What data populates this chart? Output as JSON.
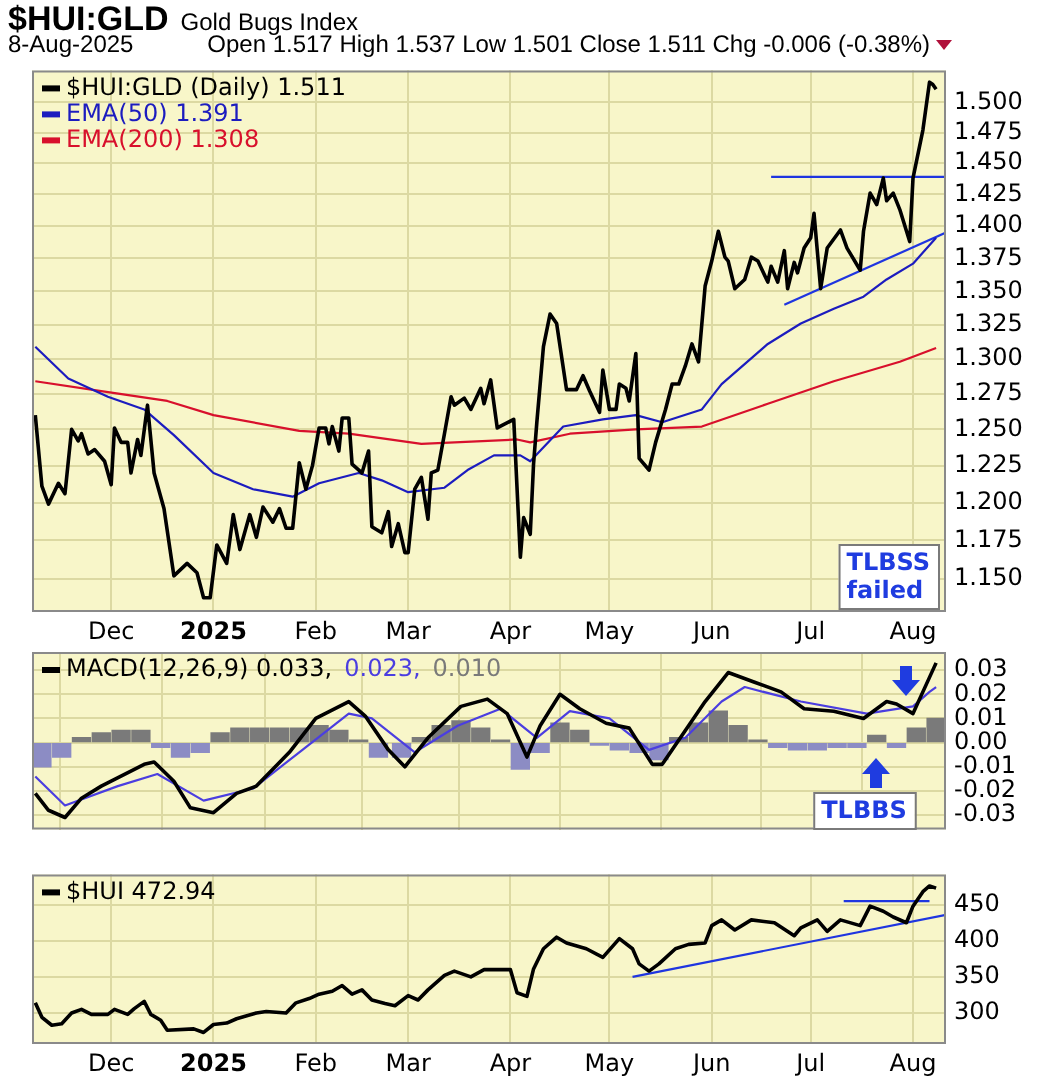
{
  "chart_data": [
    {
      "type": "line",
      "title": "$HUI:GLD",
      "subtitle": "Gold Bugs Index",
      "annotations": [
        "8-Aug-2025",
        "Open 1.517 High 1.537 Low 1.501 Close 1.511 Chg -0.006 (-0.38%)"
      ],
      "xlim": [
        "2024-11-07",
        "2025-08-11"
      ],
      "xticks": [
        {
          "value": "2024-12-01",
          "label": "Dec"
        },
        {
          "value": "2025-01-01",
          "label": "2025"
        },
        {
          "value": "2025-02-01",
          "label": "Feb"
        },
        {
          "value": "2025-03-01",
          "label": "Mar"
        },
        {
          "value": "2025-04-01",
          "label": "Apr"
        },
        {
          "value": "2025-05-01",
          "label": "May"
        },
        {
          "value": "2025-06-01",
          "label": "Jun"
        },
        {
          "value": "2025-07-01",
          "label": "Jul"
        },
        {
          "value": "2025-08-01",
          "label": "Aug"
        }
      ],
      "ylim": [
        1.129,
        1.527
      ],
      "yticks": [
        {
          "value": 1.15,
          "label": "1.150"
        },
        {
          "value": 1.175,
          "label": "1.175"
        },
        {
          "value": 1.2,
          "label": "1.200"
        },
        {
          "value": 1.225,
          "label": "1.225"
        },
        {
          "value": 1.25,
          "label": "1.250"
        },
        {
          "value": 1.275,
          "label": "1.275"
        },
        {
          "value": 1.3,
          "label": "1.300"
        },
        {
          "value": 1.325,
          "label": "1.325"
        },
        {
          "value": 1.35,
          "label": "1.350"
        },
        {
          "value": 1.375,
          "label": "1.375"
        },
        {
          "value": 1.4,
          "label": "1.400"
        },
        {
          "value": 1.425,
          "label": "1.425"
        },
        {
          "value": 1.45,
          "label": "1.450"
        },
        {
          "value": 1.475,
          "label": "1.475"
        },
        {
          "value": 1.5,
          "label": "1.500"
        }
      ],
      "log": "y",
      "grid": true,
      "legend": "top left",
      "marker": "none",
      "series": [
        {
          "name": "$HUI:GLD (Daily) 1.511",
          "color": "#000000",
          "x": [
            "2024-11-08",
            "2024-11-10",
            "2024-11-12",
            "2024-11-15",
            "2024-11-17",
            "2024-11-19",
            "2024-11-21",
            "2024-11-22",
            "2024-11-24",
            "2024-11-26",
            "2024-11-29",
            "2024-12-01",
            "2024-12-02",
            "2024-12-04",
            "2024-12-06",
            "2024-12-07",
            "2024-12-09",
            "2024-12-10",
            "2024-12-12",
            "2024-12-14",
            "2024-12-17",
            "2024-12-20",
            "2024-12-24",
            "2024-12-27",
            "2024-12-29",
            "2024-12-31",
            "2025-01-02",
            "2025-01-05",
            "2025-01-07",
            "2025-01-09",
            "2025-01-12",
            "2025-01-14",
            "2025-01-16",
            "2025-01-19",
            "2025-01-21",
            "2025-01-23",
            "2025-01-25",
            "2025-01-27",
            "2025-01-29",
            "2025-01-31",
            "2025-02-02",
            "2025-02-04",
            "2025-02-05",
            "2025-02-06",
            "2025-02-08",
            "2025-02-09",
            "2025-02-11",
            "2025-02-12",
            "2025-02-15",
            "2025-02-17",
            "2025-02-18",
            "2025-02-21",
            "2025-02-23",
            "2025-02-24",
            "2025-02-26",
            "2025-02-28",
            "2025-03-01",
            "2025-03-03",
            "2025-03-05",
            "2025-03-07",
            "2025-03-08",
            "2025-03-10",
            "2025-03-12",
            "2025-03-14",
            "2025-03-15",
            "2025-03-18",
            "2025-03-20",
            "2025-03-23",
            "2025-03-24",
            "2025-03-26",
            "2025-03-28",
            "2025-04-02",
            "2025-04-04",
            "2025-04-05",
            "2025-04-07",
            "2025-04-08",
            "2025-04-09",
            "2025-04-11",
            "2025-04-13",
            "2025-04-15",
            "2025-04-18",
            "2025-04-21",
            "2025-04-23",
            "2025-04-25",
            "2025-04-28",
            "2025-04-29",
            "2025-05-01",
            "2025-05-03",
            "2025-05-04",
            "2025-05-06",
            "2025-05-07",
            "2025-05-09",
            "2025-05-10",
            "2025-05-13",
            "2025-05-15",
            "2025-05-18",
            "2025-05-20",
            "2025-05-22",
            "2025-05-24",
            "2025-05-26",
            "2025-05-28",
            "2025-05-30",
            "2025-06-01",
            "2025-06-03",
            "2025-06-05",
            "2025-06-06",
            "2025-06-08",
            "2025-06-11",
            "2025-06-13",
            "2025-06-15",
            "2025-06-18",
            "2025-06-19",
            "2025-06-21",
            "2025-06-23",
            "2025-06-24",
            "2025-06-26",
            "2025-06-27",
            "2025-06-29",
            "2025-07-01",
            "2025-07-02",
            "2025-07-04",
            "2025-07-06",
            "2025-07-10",
            "2025-07-12",
            "2025-07-16",
            "2025-07-17",
            "2025-07-19",
            "2025-07-21",
            "2025-07-23",
            "2025-07-24",
            "2025-07-26",
            "2025-07-28",
            "2025-07-31",
            "2025-08-01",
            "2025-08-04",
            "2025-08-05",
            "2025-08-06",
            "2025-08-07",
            "2025-08-08"
          ],
          "values": [
            1.26,
            1.211,
            1.199,
            1.213,
            1.206,
            1.25,
            1.242,
            1.247,
            1.233,
            1.236,
            1.228,
            1.212,
            1.251,
            1.241,
            1.241,
            1.22,
            1.243,
            1.232,
            1.267,
            1.22,
            1.196,
            1.152,
            1.16,
            1.154,
            1.138,
            1.138,
            1.172,
            1.16,
            1.192,
            1.169,
            1.192,
            1.177,
            1.197,
            1.187,
            1.196,
            1.183,
            1.183,
            1.227,
            1.209,
            1.225,
            1.251,
            1.251,
            1.24,
            1.252,
            1.235,
            1.258,
            1.258,
            1.226,
            1.22,
            1.235,
            1.184,
            1.18,
            1.194,
            1.171,
            1.186,
            1.167,
            1.167,
            1.209,
            1.217,
            1.189,
            1.22,
            1.222,
            1.247,
            1.273,
            1.267,
            1.272,
            1.264,
            1.279,
            1.268,
            1.285,
            1.251,
            1.257,
            1.164,
            1.19,
            1.179,
            1.226,
            1.255,
            1.309,
            1.333,
            1.326,
            1.278,
            1.278,
            1.288,
            1.277,
            1.262,
            1.292,
            1.264,
            1.264,
            1.282,
            1.279,
            1.27,
            1.304,
            1.23,
            1.222,
            1.241,
            1.264,
            1.282,
            1.282,
            1.295,
            1.311,
            1.298,
            1.354,
            1.373,
            1.396,
            1.376,
            1.373,
            1.352,
            1.359,
            1.376,
            1.373,
            1.357,
            1.369,
            1.357,
            1.381,
            1.352,
            1.372,
            1.364,
            1.383,
            1.391,
            1.41,
            1.352,
            1.383,
            1.397,
            1.383,
            1.366,
            1.396,
            1.426,
            1.417,
            1.438,
            1.42,
            1.426,
            1.413,
            1.388,
            1.438,
            1.477,
            1.497,
            1.517,
            1.515,
            1.511
          ]
        },
        {
          "name": "EMA(50) 1.391",
          "color": "#1c1cbf",
          "x": [
            "2024-11-08",
            "2024-11-18",
            "2024-11-30",
            "2024-12-11",
            "2024-12-20",
            "2025-01-01",
            "2025-01-13",
            "2025-01-25",
            "2025-02-02",
            "2025-02-14",
            "2025-02-21",
            "2025-03-01",
            "2025-03-12",
            "2025-03-19",
            "2025-03-27",
            "2025-04-04",
            "2025-04-07",
            "2025-04-17",
            "2025-04-29",
            "2025-05-09",
            "2025-05-17",
            "2025-05-29",
            "2025-06-04",
            "2025-06-18",
            "2025-06-28",
            "2025-07-08",
            "2025-07-17",
            "2025-07-24",
            "2025-08-01",
            "2025-08-08"
          ],
          "values": [
            1.309,
            1.286,
            1.273,
            1.264,
            1.246,
            1.22,
            1.209,
            1.204,
            1.213,
            1.22,
            1.215,
            1.207,
            1.21,
            1.222,
            1.232,
            1.232,
            1.228,
            1.252,
            1.257,
            1.26,
            1.255,
            1.264,
            1.282,
            1.311,
            1.326,
            1.337,
            1.346,
            1.359,
            1.371,
            1.391
          ]
        },
        {
          "name": "EMA(200) 1.308",
          "color": "#d8102c",
          "x": [
            "2024-11-08",
            "2024-11-28",
            "2024-12-18",
            "2025-01-01",
            "2025-01-27",
            "2025-02-11",
            "2025-03-05",
            "2025-04-03",
            "2025-04-07",
            "2025-04-19",
            "2025-05-09",
            "2025-05-29",
            "2025-06-18",
            "2025-07-08",
            "2025-07-28",
            "2025-08-08"
          ],
          "values": [
            1.284,
            1.277,
            1.27,
            1.26,
            1.249,
            1.247,
            1.24,
            1.243,
            1.241,
            1.247,
            1.25,
            1.252,
            1.268,
            1.284,
            1.298,
            1.308
          ]
        },
        {
          "color": "#1f35e0",
          "x": [
            "2025-06-19",
            "2025-08-11"
          ],
          "values": [
            1.439,
            1.439
          ]
        },
        {
          "color": "#1f35e0",
          "x": [
            "2025-06-23",
            "2025-08-11"
          ],
          "values": [
            1.34,
            1.395
          ]
        }
      ]
    },
    {
      "type": "line",
      "tick_labels": "y",
      "annotations": [
        "TLBSS failed",
        "TLBBS"
      ],
      "xlim": [
        "2024-11-07",
        "2025-08-11"
      ],
      "xticks": [
        {
          "value": "2024-12-01",
          "label": null
        },
        {
          "value": "2025-01-01",
          "label": null
        },
        {
          "value": "2025-02-01",
          "label": null
        },
        {
          "value": "2025-03-01",
          "label": null
        },
        {
          "value": "2025-04-01",
          "label": null
        },
        {
          "value": "2025-05-01",
          "label": null
        },
        {
          "value": "2025-06-01",
          "label": null
        },
        {
          "value": "2025-07-01",
          "label": null
        },
        {
          "value": "2025-08-01",
          "label": null
        }
      ],
      "ylim": [
        -0.036,
        0.0375
      ],
      "yticks": [
        -0.03,
        -0.02,
        -0.01,
        {
          "value": 0,
          "label": "0.00"
        },
        0.01,
        0.02,
        0.03
      ],
      "grid": true,
      "legend": "top left",
      "marker": "none",
      "series": [
        {
          "name": "MACD(12,26,9) 0.033,",
          "color": "#000000",
          "x": [
            "2024-11-08",
            "2024-11-12",
            "2024-11-17",
            "2024-11-22",
            "2024-11-28",
            "2024-12-11",
            "2024-12-14",
            "2024-12-20",
            "2024-12-25",
            "2025-01-01",
            "2025-01-08",
            "2025-01-14",
            "2025-01-24",
            "2025-02-01",
            "2025-02-11",
            "2025-02-16",
            "2025-02-23",
            "2025-02-28",
            "2025-03-07",
            "2025-03-17",
            "2025-03-25",
            "2025-03-31",
            "2025-04-06",
            "2025-04-10",
            "2025-04-16",
            "2025-04-22",
            "2025-04-30",
            "2025-05-07",
            "2025-05-14",
            "2025-05-17",
            "2025-05-24",
            "2025-05-30",
            "2025-06-06",
            "2025-06-14",
            "2025-06-22",
            "2025-06-29",
            "2025-07-08",
            "2025-07-17",
            "2025-07-24",
            "2025-07-27",
            "2025-08-01",
            "2025-08-06",
            "2025-08-08"
          ],
          "values": [
            -0.021,
            -0.028,
            -0.031,
            -0.023,
            -0.018,
            -0.009,
            -0.008,
            -0.016,
            -0.027,
            -0.029,
            -0.021,
            -0.018,
            -0.004,
            0.01,
            0.017,
            0.011,
            -0.003,
            -0.01,
            0.002,
            0.015,
            0.018,
            0.012,
            -0.006,
            0.007,
            0.02,
            0.014,
            0.008,
            0.006,
            -0.009,
            -0.009,
            0.005,
            0.017,
            0.029,
            0.025,
            0.021,
            0.014,
            0.013,
            0.01,
            0.017,
            0.016,
            0.012,
            0.027,
            0.033
          ]
        },
        {
          "name": "0.023,",
          "color": "#4b3ee0",
          "x": [
            "2024-11-08",
            "2024-11-17",
            "2024-12-03",
            "2024-12-15",
            "2024-12-29",
            "2025-01-13",
            "2025-01-27",
            "2025-02-11",
            "2025-02-18",
            "2025-03-03",
            "2025-03-16",
            "2025-03-29",
            "2025-04-09",
            "2025-04-19",
            "2025-05-01",
            "2025-05-13",
            "2025-05-24",
            "2025-06-04",
            "2025-06-11",
            "2025-06-28",
            "2025-07-18",
            "2025-08-01",
            "2025-08-06",
            "2025-08-08"
          ],
          "values": [
            -0.014,
            -0.026,
            -0.018,
            -0.013,
            -0.024,
            -0.019,
            -0.004,
            0.012,
            0.01,
            -0.004,
            0.007,
            0.014,
            0.002,
            0.013,
            0.01,
            -0.003,
            0.002,
            0.017,
            0.023,
            0.017,
            0.012,
            0.015,
            0.021,
            0.023
          ]
        },
        {
          "name": "0.010",
          "type": "bar",
          "color": "#7a7a7a",
          "x": [
            "2024-11-10",
            "2024-11-16",
            "2024-11-22",
            "2024-11-28",
            "2024-12-04",
            "2024-12-10",
            "2024-12-16",
            "2024-12-22",
            "2024-12-28",
            "2025-01-03",
            "2025-01-09",
            "2025-01-15",
            "2025-01-21",
            "2025-01-27",
            "2025-02-02",
            "2025-02-08",
            "2025-02-14",
            "2025-02-20",
            "2025-02-27",
            "2025-03-05",
            "2025-03-11",
            "2025-03-17",
            "2025-03-23",
            "2025-03-29",
            "2025-04-04",
            "2025-04-10",
            "2025-04-16",
            "2025-04-22",
            "2025-04-28",
            "2025-05-04",
            "2025-05-10",
            "2025-05-16",
            "2025-05-22",
            "2025-05-28",
            "2025-06-03",
            "2025-06-09",
            "2025-06-15",
            "2025-06-21",
            "2025-06-27",
            "2025-07-03",
            "2025-07-09",
            "2025-07-15",
            "2025-07-21",
            "2025-07-27",
            "2025-08-02",
            "2025-08-08"
          ],
          "values": [
            -0.01,
            -0.006,
            0.002,
            0.004,
            0.005,
            0.005,
            -0.002,
            -0.006,
            -0.004,
            0.004,
            0.006,
            0.006,
            0.006,
            0.006,
            0.007,
            0.005,
            0.001,
            -0.006,
            -0.006,
            0.002,
            0.007,
            0.009,
            0.006,
            0.001,
            -0.011,
            -0.004,
            0.008,
            0.005,
            -0.001,
            -0.003,
            -0.004,
            -0.007,
            0.002,
            0.008,
            0.013,
            0.007,
            0.001,
            -0.002,
            -0.003,
            -0.003,
            -0.002,
            -0.002,
            0.003,
            -0.002,
            0.006,
            0.01
          ],
          "colors": [
            "#8c8cc4",
            "#8c8cc4",
            "#7a7a7a",
            "#7a7a7a",
            "#7a7a7a",
            "#7a7a7a",
            "#8c8cc4",
            "#8c8cc4",
            "#8c8cc4",
            "#7a7a7a",
            "#7a7a7a",
            "#7a7a7a",
            "#7a7a7a",
            "#7a7a7a",
            "#7a7a7a",
            "#7a7a7a",
            "#7a7a7a",
            "#8c8cc4",
            "#8c8cc4",
            "#7a7a7a",
            "#7a7a7a",
            "#7a7a7a",
            "#7a7a7a",
            "#7a7a7a",
            "#8c8cc4",
            "#8c8cc4",
            "#7a7a7a",
            "#7a7a7a",
            "#8c8cc4",
            "#8c8cc4",
            "#8c8cc4",
            "#8c8cc4",
            "#7a7a7a",
            "#7a7a7a",
            "#7a7a7a",
            "#7a7a7a",
            "#7a7a7a",
            "#8c8cc4",
            "#8c8cc4",
            "#8c8cc4",
            "#8c8cc4",
            "#8c8cc4",
            "#7a7a7a",
            "#8c8cc4",
            "#7a7a7a",
            "#7a7a7a"
          ]
        }
      ]
    },
    {
      "type": "line",
      "xlim": [
        "2024-11-07",
        "2025-08-11"
      ],
      "xticks": [
        {
          "value": "2024-12-01",
          "label": "Dec"
        },
        {
          "value": "2025-01-01",
          "label": "2025"
        },
        {
          "value": "2025-02-01",
          "label": "Feb"
        },
        {
          "value": "2025-03-01",
          "label": "Mar"
        },
        {
          "value": "2025-04-01",
          "label": "Apr"
        },
        {
          "value": "2025-05-01",
          "label": "May"
        },
        {
          "value": "2025-06-01",
          "label": "Jun"
        },
        {
          "value": "2025-07-01",
          "label": "Jul"
        },
        {
          "value": "2025-08-01",
          "label": "Aug"
        }
      ],
      "ylim": [
        257,
        492
      ],
      "yticks": [
        300,
        350,
        400,
        450
      ],
      "grid": true,
      "legend": "top left",
      "marker": "none",
      "series": [
        {
          "name": "$HUI 472.94",
          "color": "#000000",
          "x": [
            "2024-11-08",
            "2024-11-10",
            "2024-11-13",
            "2024-11-16",
            "2024-11-19",
            "2024-11-22",
            "2024-11-25",
            "2024-11-30",
            "2024-12-02",
            "2024-12-06",
            "2024-12-08",
            "2024-12-11",
            "2024-12-13",
            "2024-12-16",
            "2024-12-18",
            "2024-12-26",
            "2024-12-29",
            "2025-01-01",
            "2025-01-05",
            "2025-01-08",
            "2025-01-14",
            "2025-01-17",
            "2025-01-23",
            "2025-01-26",
            "2025-01-30",
            "2025-02-02",
            "2025-02-06",
            "2025-02-09",
            "2025-02-12",
            "2025-02-15",
            "2025-02-18",
            "2025-02-22",
            "2025-02-25",
            "2025-03-01",
            "2025-03-04",
            "2025-03-07",
            "2025-03-12",
            "2025-03-15",
            "2025-03-20",
            "2025-03-24",
            "2025-04-01",
            "2025-04-03",
            "2025-04-06",
            "2025-04-08",
            "2025-04-11",
            "2025-04-15",
            "2025-04-18",
            "2025-04-24",
            "2025-04-29",
            "2025-05-04",
            "2025-05-08",
            "2025-05-10",
            "2025-05-13",
            "2025-05-16",
            "2025-05-21",
            "2025-05-25",
            "2025-05-30",
            "2025-06-01",
            "2025-06-04",
            "2025-06-08",
            "2025-06-13",
            "2025-06-20",
            "2025-06-26",
            "2025-06-28",
            "2025-07-03",
            "2025-07-06",
            "2025-07-10",
            "2025-07-16",
            "2025-07-19",
            "2025-07-23",
            "2025-07-26",
            "2025-07-30",
            "2025-08-01",
            "2025-08-04",
            "2025-08-06",
            "2025-08-08"
          ],
          "values": [
            314,
            294,
            283,
            285,
            300,
            305,
            298,
            298,
            305,
            298,
            306,
            316,
            298,
            290,
            276,
            278,
            273,
            284,
            286,
            292,
            300,
            302,
            300,
            314,
            320,
            326,
            330,
            338,
            326,
            332,
            318,
            313,
            310,
            324,
            318,
            332,
            352,
            358,
            350,
            360,
            360,
            328,
            323,
            361,
            389,
            405,
            397,
            389,
            377,
            403,
            389,
            368,
            358,
            368,
            389,
            395,
            397,
            421,
            429,
            415,
            429,
            425,
            407,
            418,
            429,
            413,
            429,
            421,
            448,
            441,
            433,
            425,
            448,
            468,
            476,
            473
          ]
        },
        {
          "color": "#1f35e0",
          "x": [
            "2025-05-08",
            "2025-08-11"
          ],
          "values": [
            350,
            436
          ]
        },
        {
          "color": "#1f35e0",
          "x": [
            "2025-07-11",
            "2025-08-06"
          ],
          "values": [
            455,
            455
          ]
        }
      ]
    }
  ]
}
